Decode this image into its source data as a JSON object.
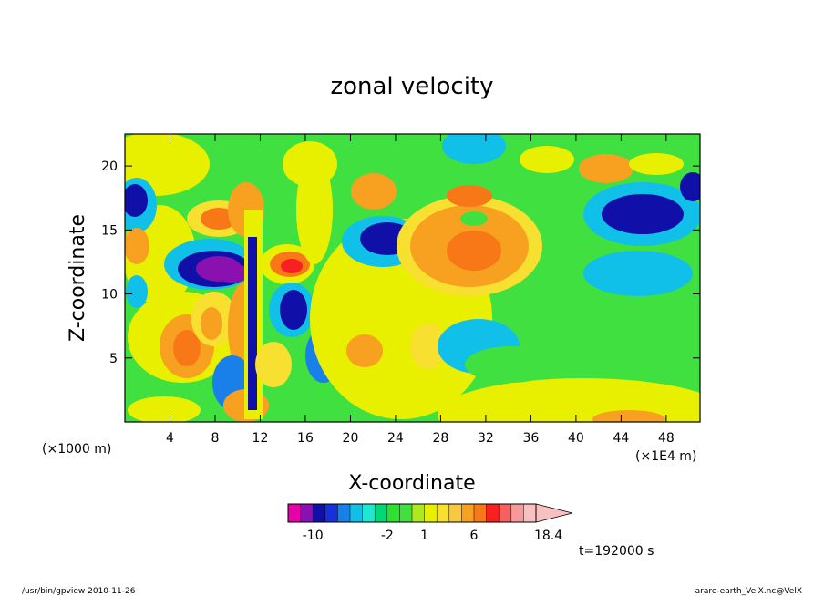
{
  "chart_data": {
    "type": "heatmap",
    "title": "zonal velocity",
    "xlabel": "X-coordinate",
    "ylabel": "Z-coordinate",
    "xunit": "(×1E4 m)",
    "yunit": "(×1000 m)",
    "xlim": [
      0,
      51
    ],
    "ylim": [
      0,
      22.5
    ],
    "x_ticks": [
      4,
      8,
      12,
      16,
      20,
      24,
      28,
      32,
      36,
      40,
      44,
      48
    ],
    "y_ticks": [
      5,
      10,
      15,
      20
    ],
    "colorbar": {
      "levels": [
        -14,
        -12,
        -10,
        -8,
        -6,
        -5,
        -4,
        -3,
        -2,
        -1,
        0,
        1,
        2,
        3,
        4,
        6,
        8,
        10,
        12,
        14,
        16,
        18.4
      ],
      "labels": [
        "-10",
        "-2",
        "1",
        "6",
        "18.4"
      ],
      "colors": [
        "#e800a8",
        "#8a10b0",
        "#1010a8",
        "#1830d8",
        "#1880e8",
        "#10c0e8",
        "#20e8d0",
        "#00d878",
        "#30e030",
        "#40e040",
        "#b0e820",
        "#e8f000",
        "#f8e030",
        "#f8c840",
        "#f8a020",
        "#f87818",
        "#f82020",
        "#f86060",
        "#f89a9a",
        "#f8c0c0"
      ]
    },
    "time_label": "t=192000 s"
  },
  "footer": {
    "left": "/usr/bin/gpview  2010-11-26",
    "right": "arare-earth_VelX.nc@VelX"
  }
}
